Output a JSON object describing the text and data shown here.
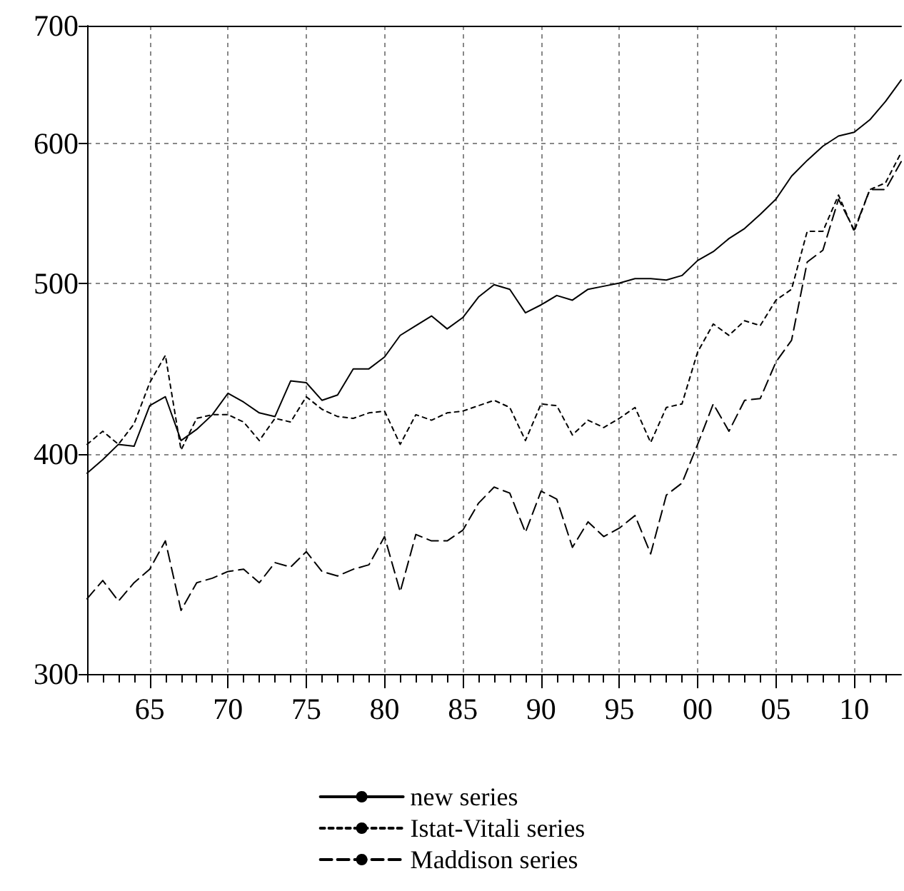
{
  "chart_data": {
    "type": "line",
    "log": "y",
    "grid": true,
    "legend": "bottom",
    "marker": "none",
    "x": [
      1961,
      1962,
      1963,
      1964,
      1965,
      1966,
      1967,
      1968,
      1969,
      1970,
      1971,
      1972,
      1973,
      1974,
      1975,
      1976,
      1977,
      1978,
      1979,
      1980,
      1981,
      1982,
      1983,
      1984,
      1985,
      1986,
      1987,
      1988,
      1989,
      1990,
      1991,
      1992,
      1993,
      1994,
      1995,
      1996,
      1997,
      1998,
      1999,
      2000,
      2001,
      2002,
      2003,
      2004,
      2005,
      2006,
      2007,
      2008,
      2009,
      2010,
      2011,
      2012,
      2013
    ],
    "xlim": [
      1961,
      2013
    ],
    "xticks": [
      {
        "value": 1961,
        "label": null
      },
      {
        "value": 1962,
        "label": null
      },
      {
        "value": 1963,
        "label": null
      },
      {
        "value": 1964,
        "label": null
      },
      {
        "value": 1965,
        "label": "65"
      },
      {
        "value": 1966,
        "label": null
      },
      {
        "value": 1967,
        "label": null
      },
      {
        "value": 1968,
        "label": null
      },
      {
        "value": 1969,
        "label": null
      },
      {
        "value": 1970,
        "label": "70"
      },
      {
        "value": 1971,
        "label": null
      },
      {
        "value": 1972,
        "label": null
      },
      {
        "value": 1973,
        "label": null
      },
      {
        "value": 1974,
        "label": null
      },
      {
        "value": 1975,
        "label": "75"
      },
      {
        "value": 1976,
        "label": null
      },
      {
        "value": 1977,
        "label": null
      },
      {
        "value": 1978,
        "label": null
      },
      {
        "value": 1979,
        "label": null
      },
      {
        "value": 1980,
        "label": "80"
      },
      {
        "value": 1981,
        "label": null
      },
      {
        "value": 1982,
        "label": null
      },
      {
        "value": 1983,
        "label": null
      },
      {
        "value": 1984,
        "label": null
      },
      {
        "value": 1985,
        "label": "85"
      },
      {
        "value": 1986,
        "label": null
      },
      {
        "value": 1987,
        "label": null
      },
      {
        "value": 1988,
        "label": null
      },
      {
        "value": 1989,
        "label": null
      },
      {
        "value": 1990,
        "label": "90"
      },
      {
        "value": 1991,
        "label": null
      },
      {
        "value": 1992,
        "label": null
      },
      {
        "value": 1993,
        "label": null
      },
      {
        "value": 1994,
        "label": null
      },
      {
        "value": 1995,
        "label": "95"
      },
      {
        "value": 1996,
        "label": null
      },
      {
        "value": 1997,
        "label": null
      },
      {
        "value": 1998,
        "label": null
      },
      {
        "value": 1999,
        "label": null
      },
      {
        "value": 2000,
        "label": "00"
      },
      {
        "value": 2001,
        "label": null
      },
      {
        "value": 2002,
        "label": null
      },
      {
        "value": 2003,
        "label": null
      },
      {
        "value": 2004,
        "label": null
      },
      {
        "value": 2005,
        "label": "05"
      },
      {
        "value": 2006,
        "label": null
      },
      {
        "value": 2007,
        "label": null
      },
      {
        "value": 2008,
        "label": null
      },
      {
        "value": 2009,
        "label": null
      },
      {
        "value": 2010,
        "label": "10"
      },
      {
        "value": 2011,
        "label": null
      },
      {
        "value": 2012,
        "label": null
      }
    ],
    "ylim": [
      300,
      700
    ],
    "yticks": [
      300,
      400,
      500,
      600,
      700
    ],
    "series": [
      {
        "name": "new series",
        "color": "#000000",
        "line_style": "solid",
        "values": [
          390,
          397,
          405,
          404,
          426,
          431,
          407,
          413,
          421,
          433,
          428,
          422,
          420,
          440,
          439,
          429,
          432,
          447,
          447,
          454,
          467,
          473,
          479,
          471,
          478,
          491,
          499,
          496,
          481,
          486,
          492,
          489,
          496,
          498,
          500,
          503,
          503,
          502,
          505,
          515,
          521,
          530,
          537,
          547,
          558,
          575,
          587,
          598,
          606,
          609,
          619,
          634,
          652
        ]
      },
      {
        "name": "Istat-Vitali series",
        "color": "#000000",
        "line_style": "dotted",
        "values": [
          405,
          412,
          405,
          416,
          439,
          455,
          402,
          419,
          421,
          421,
          417,
          407,
          419,
          417,
          431,
          424,
          420,
          419,
          422,
          423,
          405,
          421,
          418,
          422,
          423,
          426,
          429,
          425,
          407,
          427,
          426,
          410,
          418,
          414,
          419,
          425,
          406,
          425,
          427,
          457,
          474,
          467,
          476,
          473,
          489,
          496,
          535,
          535,
          561,
          535,
          565,
          570,
          593
        ]
      },
      {
        "name": "Maddison series",
        "color": "#000000",
        "line_style": "dashed",
        "values": [
          331,
          339,
          330,
          338,
          344,
          357,
          326,
          338,
          340,
          343,
          344,
          338,
          347,
          345,
          352,
          343,
          341,
          344,
          346,
          359,
          334,
          360,
          357,
          357,
          362,
          375,
          383,
          380,
          361,
          381,
          377,
          354,
          366,
          359,
          363,
          369,
          351,
          379,
          385,
          405,
          427,
          412,
          429,
          430,
          451,
          464,
          514,
          522,
          558,
          536,
          565,
          565,
          586
        ]
      }
    ]
  }
}
